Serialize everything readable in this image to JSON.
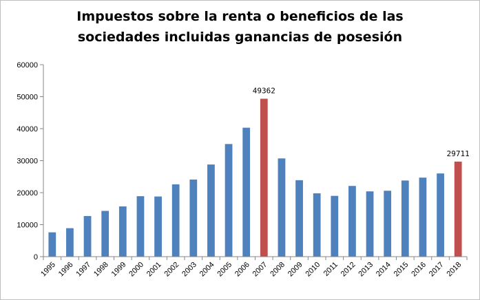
{
  "chart_data": {
    "type": "bar",
    "title": "Impuestos sobre la renta o beneficios de las\nsociedades incluidas ganancias de posesión",
    "xlabel": "",
    "ylabel": "",
    "ylim": [
      0,
      60000
    ],
    "yticks": [
      "0",
      "10000",
      "20000",
      "30000",
      "40000",
      "50000",
      "60000"
    ],
    "grid": false,
    "legend": "none",
    "categories": [
      "1995",
      "1996",
      "1997",
      "1998",
      "1999",
      "2000",
      "2001",
      "2002",
      "2003",
      "2004",
      "2005",
      "2006",
      "2007",
      "2008",
      "2009",
      "2010",
      "2011",
      "2012",
      "2013",
      "2014",
      "2015",
      "2016",
      "2017",
      "2018"
    ],
    "values": [
      7600,
      8900,
      12700,
      14300,
      15700,
      18900,
      18800,
      22600,
      24100,
      28800,
      35200,
      40300,
      49362,
      30700,
      23900,
      19800,
      19000,
      22100,
      20400,
      20600,
      23800,
      24700,
      26000,
      29711
    ],
    "highlighted": [
      "2007",
      "2018"
    ],
    "data_labels": [
      {
        "category": "2007",
        "text": "49362"
      },
      {
        "category": "2018",
        "text": "29711"
      }
    ],
    "colors": {
      "bar": "#4f81bd",
      "highlight": "#c0504d",
      "axis": "#868686"
    }
  }
}
